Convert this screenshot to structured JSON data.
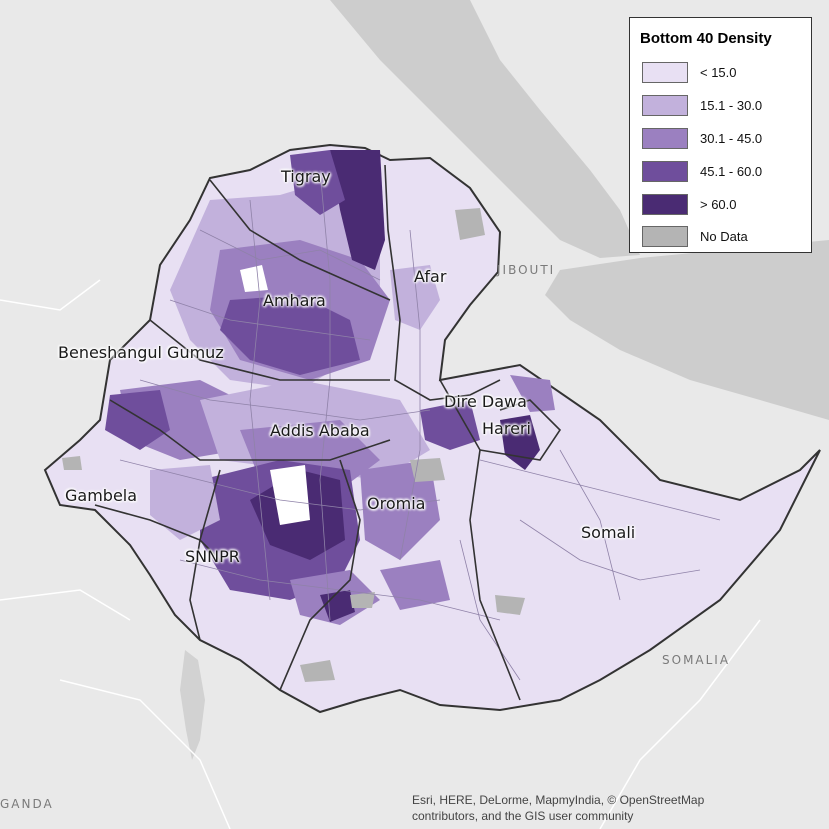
{
  "legend": {
    "title": "Bottom 40 Density",
    "classes": [
      {
        "label": "< 15.0",
        "color": "#e8e0f3"
      },
      {
        "label": "15.1 - 30.0",
        "color": "#c2b1dc"
      },
      {
        "label": "30.1 - 45.0",
        "color": "#9b80c0"
      },
      {
        "label": "45.1 - 60.0",
        "color": "#6f4e9c"
      },
      {
        "label": "> 60.0",
        "color": "#4a2b73"
      },
      {
        "label": "No Data",
        "color": "#b4b4b4"
      }
    ]
  },
  "regions": {
    "tigray": "Tigray",
    "afar": "Afar",
    "amhara": "Amhara",
    "beneshangul": "Beneshangul Gumuz",
    "addis": "Addis Ababa",
    "diredawa": "Dire Dawa",
    "hareri": "Hareri",
    "gambela": "Gambela",
    "oromia": "Oromia",
    "snnpr": "SNNPR",
    "somali": "Somali"
  },
  "countries": {
    "djibouti": "JIBOUTI",
    "somalia": "SOMALIA",
    "uganda": "GANDA"
  },
  "attribution": {
    "line1": "Esri, HERE, DeLorme, MapmyIndia, © OpenStreetMap",
    "line2": "contributors, and the GIS user community"
  },
  "colors": {
    "land": "#e9e9e9",
    "sea": "#cdcdcd",
    "country_border": "#333333"
  }
}
